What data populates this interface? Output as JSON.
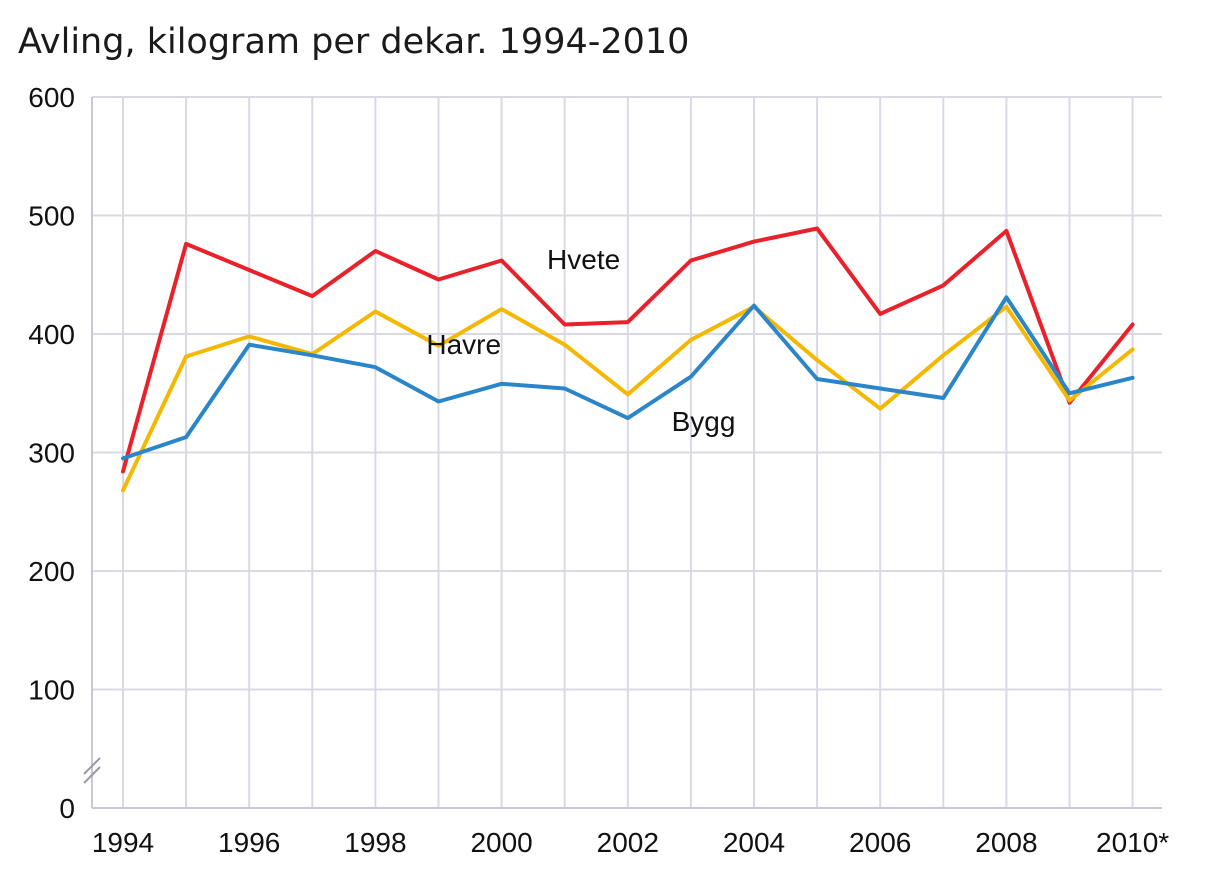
{
  "chart_data": {
    "type": "line",
    "title": "Avling, kilogram per dekar. 1994-2010",
    "xlabel": "",
    "ylabel": "",
    "ylim": [
      0,
      600
    ],
    "yticks": [
      "0",
      "100",
      "200",
      "300",
      "400",
      "500",
      "600"
    ],
    "x": [
      1994,
      1995,
      1996,
      1997,
      1998,
      1999,
      2000,
      2001,
      2002,
      2003,
      2004,
      2005,
      2006,
      2007,
      2008,
      2009,
      2010
    ],
    "xtick_labels": [
      "1994",
      "1996",
      "1998",
      "2000",
      "2002",
      "2004",
      "2006",
      "2008",
      "2010*"
    ],
    "grid": true,
    "axis_break": true,
    "series": [
      {
        "name": "Hvete",
        "color": "#e8212a",
        "values": [
          284,
          476,
          454,
          432,
          470,
          446,
          462,
          408,
          410,
          462,
          478,
          489,
          417,
          441,
          487,
          342,
          408
        ]
      },
      {
        "name": "Havre",
        "color": "#f5b800",
        "values": [
          268,
          381,
          398,
          383,
          419,
          390,
          421,
          391,
          349,
          395,
          423,
          378,
          337,
          382,
          423,
          344,
          387
        ]
      },
      {
        "name": "Bygg",
        "color": "#2b86c9",
        "values": [
          295,
          313,
          391,
          382,
          372,
          343,
          358,
          354,
          329,
          364,
          424,
          362,
          354,
          346,
          431,
          350,
          363
        ]
      }
    ]
  }
}
